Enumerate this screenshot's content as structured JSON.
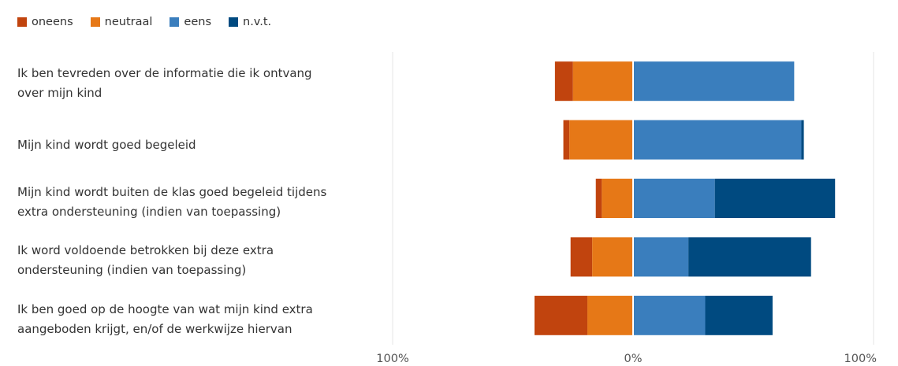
{
  "chart_data": {
    "type": "bar",
    "orientation": "horizontal-diverging",
    "legend_position": "top-left",
    "grid": true,
    "xlim": [
      -100,
      100
    ],
    "x_tick_labels": [
      "100%",
      "0%",
      "100%"
    ],
    "colors": {
      "oneens": "#c1440e",
      "neutraal": "#e67817",
      "eens": "#3a7ebd",
      "nvt": "#004a80",
      "grid": "#e6e6e6"
    },
    "legend": [
      {
        "key": "oneens",
        "label": "oneens"
      },
      {
        "key": "neutraal",
        "label": "neutraal"
      },
      {
        "key": "eens",
        "label": "eens"
      },
      {
        "key": "nvt",
        "label": "n.v.t."
      }
    ],
    "categories": [
      {
        "line1": "Ik ben tevreden over de informatie die ik ontvang",
        "line2": "over mijn kind"
      },
      {
        "line1": "Mijn kind wordt goed begeleid",
        "line2": ""
      },
      {
        "line1": "Mijn kind wordt buiten de klas goed begeleid tijdens",
        "line2": "extra ondersteuning (indien van toepassing)"
      },
      {
        "line1": "Ik word voldoende betrokken bij deze extra",
        "line2": "ondersteuning (indien van toepassing)"
      },
      {
        "line1": "Ik ben goed op de hoogte van wat mijn kind extra",
        "line2": "aangeboden krijgt, en/of de werkwijze hiervan"
      }
    ],
    "series": [
      {
        "key": "oneens",
        "name": "oneens",
        "values": [
          7.5,
          2.5,
          2.5,
          9,
          22
        ]
      },
      {
        "key": "neutraal",
        "name": "neutraal",
        "values": [
          25,
          26.5,
          13,
          17,
          19
        ]
      },
      {
        "key": "eens",
        "name": "eens",
        "values": [
          67,
          70,
          34,
          23,
          30
        ]
      },
      {
        "key": "nvt",
        "name": "n.v.t.",
        "values": [
          0,
          1,
          50,
          51,
          28
        ]
      }
    ]
  }
}
